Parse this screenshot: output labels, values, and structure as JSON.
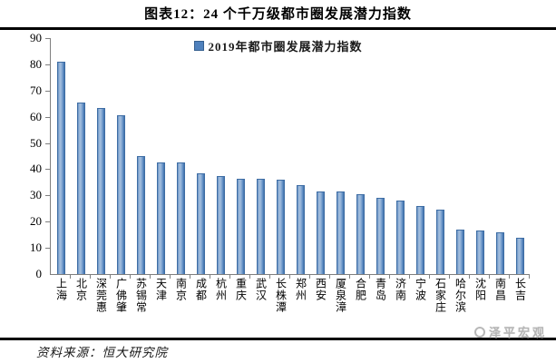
{
  "title": "图表12：24 个千万级都市圈发展潜力指数",
  "source": "资料来源：恒大研究院",
  "watermark": "泽平宏观",
  "chart_data": {
    "type": "bar",
    "title": "图表12：24 个千万级都市圈发展潜力指数",
    "legend": "2019年都市圈发展潜力指数",
    "legend_position": "top-center",
    "categories": [
      "上海",
      "北京",
      "深莞惠",
      "广佛肇",
      "苏锡常",
      "天津",
      "南京",
      "成都",
      "杭州",
      "重庆",
      "武汉",
      "长株潭",
      "郑州",
      "西安",
      "厦泉漳",
      "合肥",
      "青岛",
      "济南",
      "宁波",
      "石家庄",
      "哈尔滨",
      "沈阳",
      "南昌",
      "长吉"
    ],
    "values": [
      81,
      65.5,
      63.5,
      60.5,
      45,
      42.5,
      42.5,
      38.5,
      37.5,
      36.5,
      36.5,
      36,
      34,
      31.5,
      31.5,
      30.5,
      29,
      28,
      26,
      24.5,
      17,
      16.5,
      16,
      14
    ],
    "xlabel": "",
    "ylabel": "",
    "ylim": [
      0,
      90
    ],
    "ytick_step": 10,
    "grid": false,
    "bar_color": "#4F81BD",
    "axis_color": "#7F7F7F"
  }
}
